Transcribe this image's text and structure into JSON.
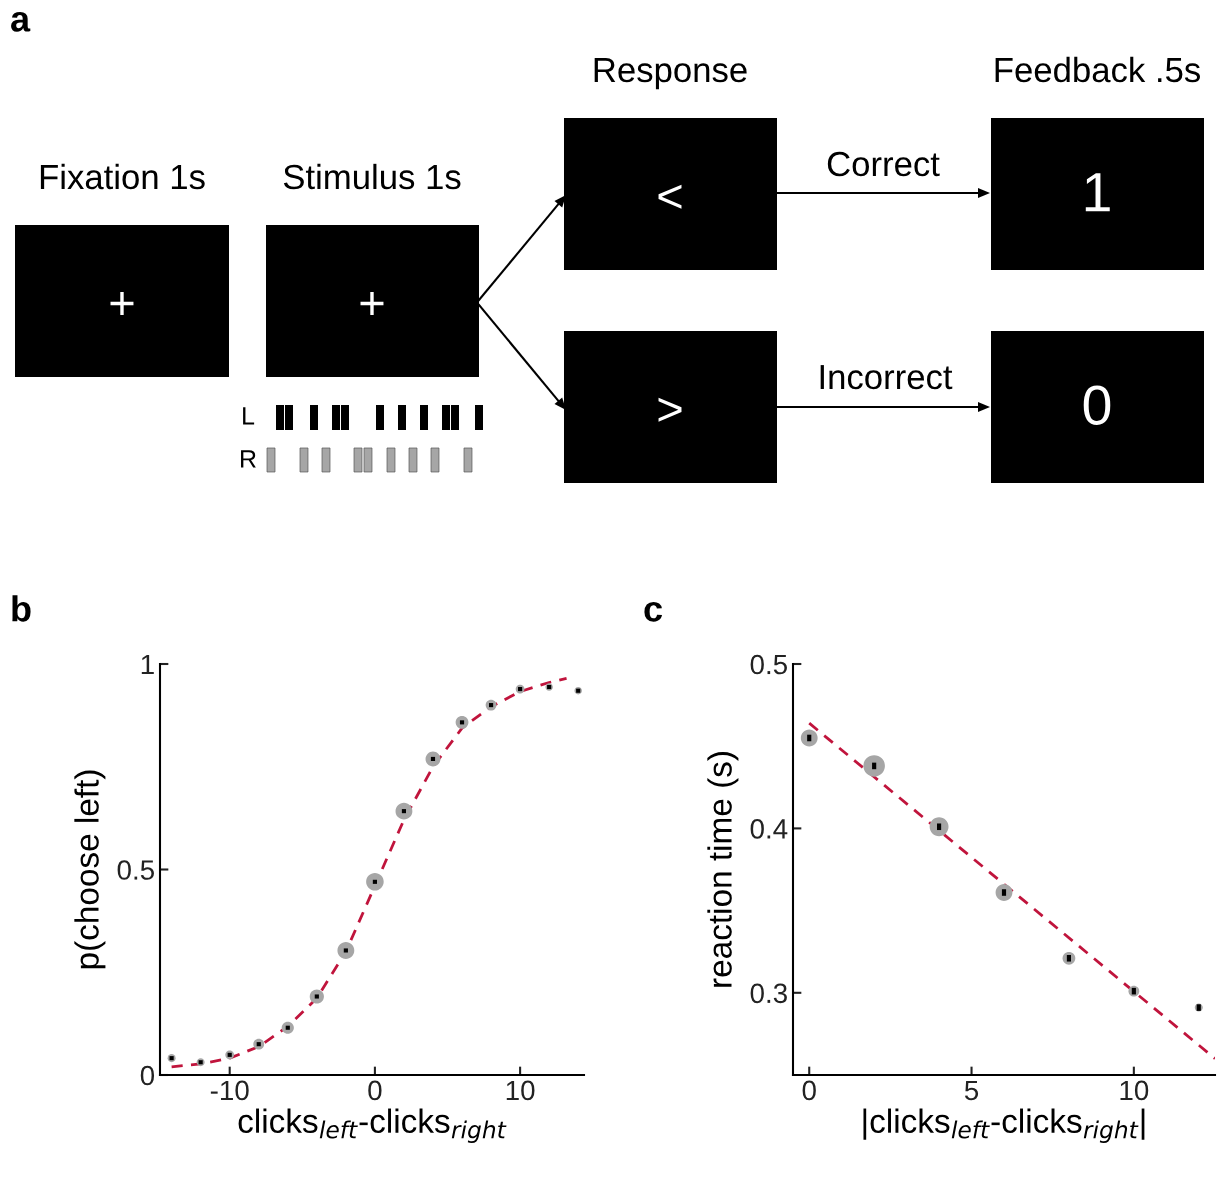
{
  "chart_data": [
    {
      "type": "other",
      "title": "a",
      "annotations": [
        "Fixation 1s",
        "Stimulus 1s",
        "Response",
        "Feedback .5s",
        "Correct",
        "Incorrect",
        "+",
        "+",
        "<",
        ">",
        "1",
        "0",
        "L",
        "R"
      ]
    },
    {
      "type": "bubble",
      "title": "b",
      "xlabel": "clicks$_{left}$-clicks$_{right}$",
      "ylabel": "p(choose left)",
      "xlim": [
        -14.8,
        14.4
      ],
      "ylim": [
        0,
        1
      ],
      "xticks": [
        -10,
        0,
        10
      ],
      "yticks": [
        0,
        0.5,
        1
      ],
      "series": [
        {
          "type": "bubble",
          "color": "#a6a6a6",
          "x": [
            -14,
            -12,
            -10,
            -8,
            -6,
            -4,
            -2,
            0,
            2,
            4,
            6,
            8,
            10,
            12,
            14
          ],
          "values": [
            0.041,
            0.031,
            0.049,
            0.075,
            0.115,
            0.191,
            0.303,
            0.47,
            0.642,
            0.769,
            0.858,
            0.9,
            0.939,
            0.944,
            0.935
          ],
          "sizes": [
            0.21,
            0.21,
            0.25,
            0.38,
            0.48,
            0.65,
            0.92,
            1,
            0.92,
            0.72,
            0.53,
            0.38,
            0.25,
            0.18,
            0.18
          ],
          "errors": [
            0.005,
            0.005,
            0.005,
            0.005,
            0.005,
            0.005,
            0.005,
            0.005,
            0.005,
            0.005,
            0.005,
            0.005,
            0.005,
            0.005,
            0.005
          ]
        },
        {
          "type": "line",
          "color": "#c0143c",
          "line_style": "dashed",
          "x": [
            -14,
            -12,
            -10,
            -8,
            -6,
            -4,
            -2,
            2,
            4,
            6,
            8,
            10,
            12,
            13.2
          ],
          "values": [
            0.02,
            0.027,
            0.041,
            0.069,
            0.118,
            0.187,
            0.3,
            0.621,
            0.75,
            0.844,
            0.896,
            0.933,
            0.955,
            0.965
          ]
        }
      ]
    },
    {
      "type": "bubble",
      "title": "c",
      "xlabel": "|clicks$_{left}$-clicks$_{right}$|",
      "ylabel": "reaction time (s)",
      "xlim": [
        -0.5,
        12.5
      ],
      "ylim": [
        0.25,
        0.5
      ],
      "xticks": [
        0,
        5,
        10
      ],
      "yticks": [
        0.3,
        0.4,
        0.5
      ],
      "series": [
        {
          "type": "bubble",
          "color": "#a6a6a6",
          "x": [
            0,
            2,
            4,
            6,
            8,
            10,
            12
          ],
          "values": [
            0.455,
            0.438,
            0.401,
            0.361,
            0.321,
            0.301,
            0.291
          ],
          "sizes": [
            0.61,
            1,
            0.77,
            0.61,
            0.35,
            0.25,
            0.14
          ],
          "errors": [
            0.002,
            0.002,
            0.002,
            0.002,
            0.002,
            0.002,
            0.002
          ]
        },
        {
          "type": "line",
          "color": "#c0143c",
          "line_style": "dashed",
          "x": [
            0,
            12.5
          ],
          "values": [
            0.464,
            0.26
          ]
        }
      ]
    }
  ]
}
